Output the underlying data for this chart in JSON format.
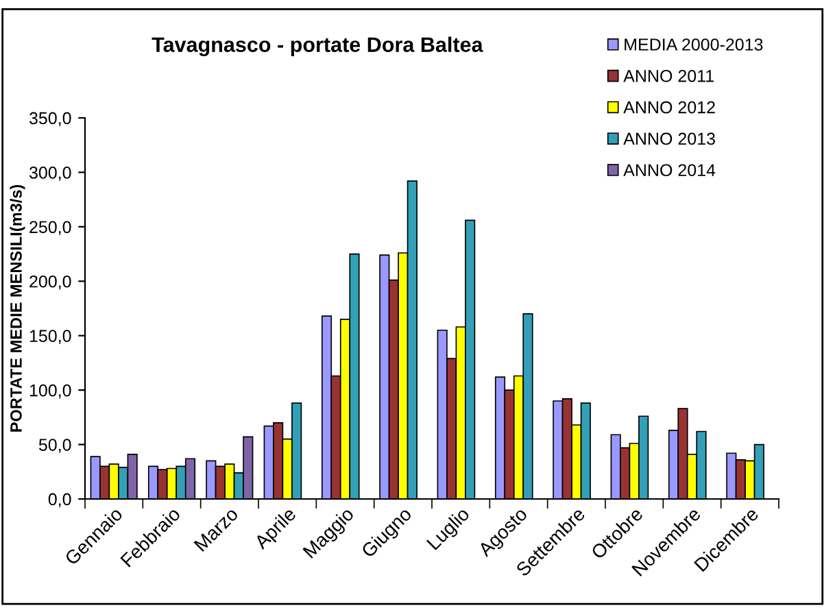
{
  "chart_data": {
    "type": "bar",
    "title": "Tavagnasco - portate Dora Baltea",
    "ylabel": "PORTATE MEDIE MENSILI(m3/s)",
    "categories": [
      "Gennaio",
      "Febbraio",
      "Marzo",
      "Aprile",
      "Maggio",
      "Giugno",
      "Luglio",
      "Agosto",
      "Settembre",
      "Ottobre",
      "Novembre",
      "Dicembre"
    ],
    "series": [
      {
        "name": "MEDIA 2000-2013",
        "color": "#9999ff",
        "values": [
          39,
          30,
          35,
          67,
          168,
          224,
          155,
          112,
          90,
          59,
          63,
          42
        ]
      },
      {
        "name": "ANNO 2011",
        "color": "#993333",
        "values": [
          30,
          27,
          30,
          70,
          113,
          201,
          129,
          100,
          92,
          47,
          83,
          36
        ]
      },
      {
        "name": "ANNO 2012",
        "color": "#ffff00",
        "values": [
          32,
          28,
          32,
          55,
          165,
          226,
          158,
          113,
          68,
          51,
          41,
          35
        ]
      },
      {
        "name": "ANNO 2013",
        "color": "#33a0b8",
        "values": [
          29,
          30,
          24,
          88,
          225,
          292,
          256,
          170,
          88,
          76,
          62,
          50
        ]
      },
      {
        "name": "ANNO 2014",
        "color": "#7f65a8",
        "values": [
          41,
          37,
          57,
          null,
          null,
          null,
          null,
          null,
          null,
          null,
          null,
          null
        ]
      }
    ],
    "ylim": [
      0,
      350
    ],
    "yticks": [
      {
        "value": 0,
        "label": "0,0"
      },
      {
        "value": 50,
        "label": "50,0"
      },
      {
        "value": 100,
        "label": "100,0"
      },
      {
        "value": 150,
        "label": "150,0"
      },
      {
        "value": 200,
        "label": "200,0"
      },
      {
        "value": 250,
        "label": "250,0"
      },
      {
        "value": 300,
        "label": "300,0"
      },
      {
        "value": 350,
        "label": "350,0"
      }
    ],
    "grid": false,
    "legend": "top right"
  }
}
